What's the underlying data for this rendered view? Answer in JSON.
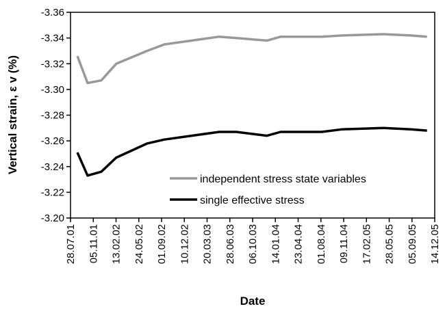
{
  "chart_data": {
    "type": "line",
    "xlabel": "Date",
    "ylabel": "Vertical strain, ε v (%)",
    "xlim": [
      "2001-07-28",
      "2005-12-14"
    ],
    "xticks": [
      {
        "value": "2001-07-28",
        "label": "28.07.01"
      },
      {
        "value": "2001-11-05",
        "label": "05.11.01"
      },
      {
        "value": "2002-02-13",
        "label": "13.02.02"
      },
      {
        "value": "2002-05-24",
        "label": "24.05.02"
      },
      {
        "value": "2002-09-01",
        "label": "01.09.02"
      },
      {
        "value": "2002-12-10",
        "label": "10.12.02"
      },
      {
        "value": "2003-03-20",
        "label": "20.03.03"
      },
      {
        "value": "2003-06-28",
        "label": "28.06.03"
      },
      {
        "value": "2003-10-06",
        "label": "06.10.03"
      },
      {
        "value": "2004-01-14",
        "label": "14.01.04"
      },
      {
        "value": "2004-04-23",
        "label": "23.04.04"
      },
      {
        "value": "2004-08-01",
        "label": "01.08.04"
      },
      {
        "value": "2004-11-09",
        "label": "09.11.04"
      },
      {
        "value": "2005-02-17",
        "label": "17.02.05"
      },
      {
        "value": "2005-05-28",
        "label": "28.05.05"
      },
      {
        "value": "2005-09-05",
        "label": "05.09.05"
      },
      {
        "value": "2005-12-14",
        "label": "14.12.05"
      }
    ],
    "ylim": [
      -3.2,
      -3.36
    ],
    "yticks": [
      {
        "value": -3.36,
        "label": "-3.36"
      },
      {
        "value": -3.34,
        "label": "-3.34"
      },
      {
        "value": -3.32,
        "label": "-3.32"
      },
      {
        "value": -3.3,
        "label": "-3.30"
      },
      {
        "value": -3.28,
        "label": "-3.28"
      },
      {
        "value": -3.26,
        "label": "-3.26"
      },
      {
        "value": -3.24,
        "label": "-3.24"
      },
      {
        "value": -3.22,
        "label": "-3.22"
      },
      {
        "value": -3.2,
        "label": "-3.20"
      }
    ],
    "x": [
      "2001-08-27",
      "2001-10-11",
      "2001-12-10",
      "2002-02-14",
      "2002-06-30",
      "2002-09-13",
      "2003-01-11",
      "2003-05-12",
      "2003-07-26",
      "2003-12-08",
      "2004-02-06",
      "2004-08-05",
      "2004-11-03",
      "2005-05-02",
      "2005-08-31",
      "2005-11-10"
    ],
    "series": [
      {
        "name": "independent stress state variables",
        "color": "#999999",
        "values": [
          -3.326,
          -3.305,
          -3.307,
          -3.32,
          -3.33,
          -3.335,
          -3.338,
          -3.341,
          -3.34,
          -3.338,
          -3.341,
          -3.341,
          -3.342,
          -3.343,
          -3.342,
          -3.341
        ]
      },
      {
        "name": "single effective stress",
        "color": "#000000",
        "values": [
          -3.251,
          -3.233,
          -3.236,
          -3.247,
          -3.258,
          -3.261,
          -3.264,
          -3.267,
          -3.267,
          -3.264,
          -3.267,
          -3.267,
          -3.269,
          -3.27,
          -3.269,
          -3.268
        ]
      }
    ],
    "legend": "lower right"
  }
}
